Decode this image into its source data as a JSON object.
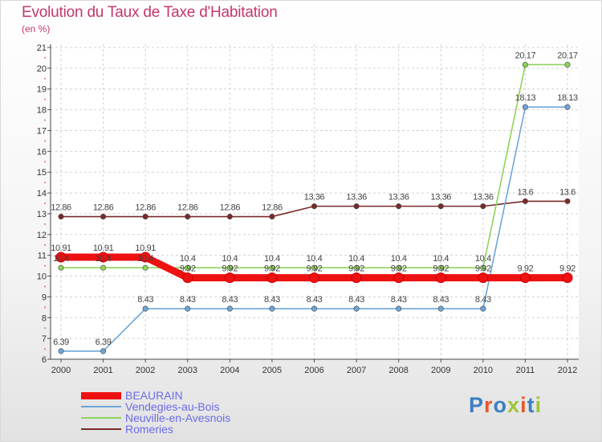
{
  "title": "Evolution du Taux de Taxe d'Habitation",
  "subtitle": "(en %)",
  "brand": {
    "text": "Proxiti",
    "letters": [
      "P",
      "r",
      "o",
      "x",
      "i",
      "t",
      "i"
    ],
    "colors": [
      "#3b7fc4",
      "#e8572a",
      "#3b7fc4",
      "#9ec53a",
      "#e8572a",
      "#3b7fc4",
      "#9ec53a"
    ]
  },
  "chart_data": {
    "type": "line",
    "x": [
      "2000",
      "2001",
      "2002",
      "2003",
      "2004",
      "2005",
      "2006",
      "2007",
      "2008",
      "2009",
      "2010",
      "2011",
      "2012"
    ],
    "yticks": [
      "6",
      "7",
      "8",
      "9",
      "10",
      "11",
      "12",
      "13",
      "14",
      "15",
      "16",
      "17",
      "18",
      "19",
      "20",
      "21"
    ],
    "ylim": [
      6,
      21
    ],
    "grid": true,
    "legend_position": "bottom-left",
    "series": [
      {
        "name": "Romeries",
        "color": "#7a2a2a",
        "values": [
          12.86,
          12.86,
          12.86,
          12.86,
          12.86,
          12.86,
          13.36,
          13.36,
          13.36,
          13.36,
          13.36,
          13.6,
          13.6
        ],
        "labels": [
          "12.86",
          "12.86",
          "12.86",
          "12.86",
          "12.86",
          "12.86",
          "13.36",
          "13.36",
          "13.36",
          "13.36",
          "13.36",
          "13.6",
          "13.6"
        ]
      },
      {
        "name": "Neuville-en-Avesnois",
        "color": "#8ed35a",
        "values": [
          10.4,
          10.4,
          10.4,
          10.4,
          10.4,
          10.4,
          10.4,
          10.4,
          10.4,
          10.4,
          10.4,
          20.17,
          20.17
        ],
        "labels": [
          "10.4",
          "10.4",
          "10.4",
          "10.4",
          "10.4",
          "10.4",
          "10.4",
          "10.4",
          "10.4",
          "10.4",
          "10.4",
          "20.17",
          "20.17"
        ]
      },
      {
        "name": "Vendegies-au-Bois",
        "color": "#6da6d8",
        "values": [
          6.39,
          6.39,
          8.43,
          8.43,
          8.43,
          8.43,
          8.43,
          8.43,
          8.43,
          8.43,
          8.43,
          18.13,
          18.13
        ],
        "labels": [
          "6.39",
          "6.39",
          "8.43",
          "8.43",
          "8.43",
          "8.43",
          "8.43",
          "8.43",
          "8.43",
          "8.43",
          "8.43",
          "18.13",
          "18.13"
        ]
      },
      {
        "name": "BEAURAIN",
        "color": "#ee1111",
        "values": [
          10.91,
          10.91,
          10.91,
          9.92,
          9.92,
          9.92,
          9.92,
          9.92,
          9.92,
          9.92,
          9.92,
          9.92,
          9.92
        ],
        "labels": [
          "10.91",
          "10.91",
          "10.91",
          "9.92",
          "9.92",
          "9.92",
          "9.92",
          "9.92",
          "9.92",
          "9.92",
          "9.92",
          "9.92",
          "9.92"
        ]
      }
    ],
    "legend": [
      "BEAURAIN",
      "Vendegies-au-Bois",
      "Neuville-en-Avesnois",
      "Romeries"
    ]
  }
}
